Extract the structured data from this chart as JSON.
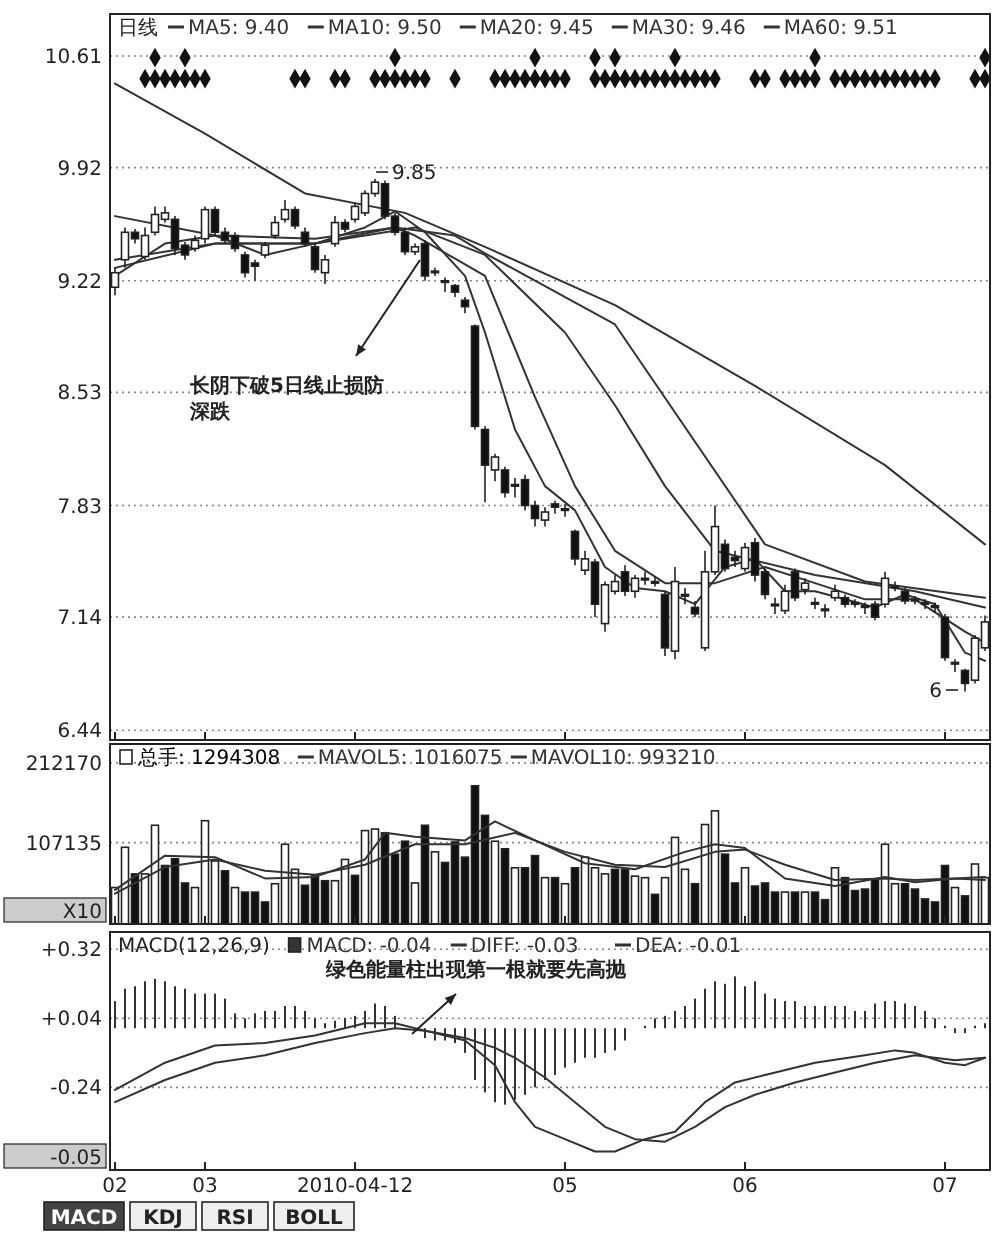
{
  "chart_data": [
    {
      "type": "candlestick",
      "legend_title": "日线",
      "legend": "top left",
      "grid": "y",
      "tick_labels": "y",
      "ylim": [
        6.38,
        10.87
      ],
      "yticks": [
        6.44,
        7.14,
        7.83,
        8.53,
        9.22,
        9.92,
        10.61
      ],
      "categories": [
        "02",
        null,
        null,
        null,
        null,
        null,
        null,
        null,
        null,
        "03",
        null,
        null,
        null,
        null,
        null,
        null,
        null,
        null,
        null,
        null,
        null,
        null,
        null,
        null,
        "2010-04-12",
        null,
        null,
        null,
        null,
        null,
        null,
        null,
        null,
        null,
        null,
        null,
        null,
        null,
        null,
        null,
        null,
        null,
        null,
        null,
        null,
        "05",
        null,
        null,
        null,
        null,
        null,
        null,
        null,
        null,
        null,
        null,
        null,
        null,
        null,
        null,
        null,
        null,
        null,
        "06",
        null,
        null,
        null,
        null,
        null,
        null,
        null,
        null,
        null,
        null,
        null,
        null,
        null,
        null,
        null,
        null,
        null,
        null,
        null,
        "07",
        null,
        null,
        null,
        null
      ],
      "ohlc": [
        [
          9.18,
          9.3,
          9.13,
          9.27
        ],
        [
          9.35,
          9.55,
          9.3,
          9.52
        ],
        [
          9.52,
          9.54,
          9.45,
          9.48
        ],
        [
          9.37,
          9.55,
          9.35,
          9.5
        ],
        [
          9.52,
          9.68,
          9.5,
          9.63
        ],
        [
          9.6,
          9.68,
          9.58,
          9.64
        ],
        [
          9.6,
          9.62,
          9.38,
          9.42
        ],
        [
          9.44,
          9.46,
          9.35,
          9.38
        ],
        [
          9.42,
          9.5,
          9.4,
          9.47
        ],
        [
          9.48,
          9.68,
          9.45,
          9.66
        ],
        [
          9.66,
          9.68,
          9.5,
          9.52
        ],
        [
          9.52,
          9.55,
          9.45,
          9.47
        ],
        [
          9.5,
          9.52,
          9.4,
          9.42
        ],
        [
          9.38,
          9.4,
          9.24,
          9.27
        ],
        [
          9.33,
          9.35,
          9.22,
          9.31
        ],
        [
          9.38,
          9.46,
          9.36,
          9.44
        ],
        [
          9.5,
          9.62,
          9.48,
          9.58
        ],
        [
          9.6,
          9.72,
          9.58,
          9.66
        ],
        [
          9.66,
          9.68,
          9.54,
          9.56
        ],
        [
          9.52,
          9.55,
          9.43,
          9.45
        ],
        [
          9.43,
          9.45,
          9.27,
          9.29
        ],
        [
          9.27,
          9.38,
          9.2,
          9.35
        ],
        [
          9.45,
          9.62,
          9.43,
          9.58
        ],
        [
          9.58,
          9.6,
          9.52,
          9.54
        ],
        [
          9.6,
          9.7,
          9.58,
          9.68
        ],
        [
          9.64,
          9.78,
          9.62,
          9.76
        ],
        [
          9.76,
          9.85,
          9.74,
          9.83
        ],
        [
          9.82,
          9.84,
          9.6,
          9.62
        ],
        [
          9.62,
          9.64,
          9.5,
          9.52
        ],
        [
          9.52,
          9.55,
          9.38,
          9.4
        ],
        [
          9.4,
          9.45,
          9.38,
          9.43
        ],
        [
          9.45,
          9.47,
          9.22,
          9.25
        ],
        [
          9.28,
          9.3,
          9.25,
          9.27
        ],
        [
          9.22,
          9.24,
          9.15,
          9.21
        ],
        [
          9.19,
          9.2,
          9.12,
          9.15
        ],
        [
          9.1,
          9.12,
          9.02,
          9.06
        ],
        [
          8.94,
          8.95,
          8.3,
          8.32
        ],
        [
          8.3,
          8.32,
          7.85,
          8.08
        ],
        [
          8.05,
          8.15,
          7.98,
          8.13
        ],
        [
          8.05,
          8.07,
          7.88,
          7.91
        ],
        [
          7.96,
          8.0,
          7.88,
          7.95
        ],
        [
          7.99,
          8.02,
          7.8,
          7.83
        ],
        [
          7.83,
          7.86,
          7.7,
          7.75
        ],
        [
          7.74,
          7.82,
          7.7,
          7.79
        ],
        [
          7.84,
          7.86,
          7.78,
          7.82
        ],
        [
          7.81,
          7.84,
          7.76,
          7.8
        ],
        [
          7.67,
          7.68,
          7.46,
          7.5
        ],
        [
          7.43,
          7.55,
          7.4,
          7.5
        ],
        [
          7.48,
          7.5,
          7.14,
          7.22
        ],
        [
          7.1,
          7.36,
          7.05,
          7.34
        ],
        [
          7.3,
          7.4,
          7.28,
          7.36
        ],
        [
          7.42,
          7.46,
          7.27,
          7.3
        ],
        [
          7.3,
          7.4,
          7.26,
          7.38
        ],
        [
          7.38,
          7.42,
          7.34,
          7.37
        ],
        [
          7.36,
          7.39,
          7.33,
          7.35
        ],
        [
          7.28,
          7.3,
          6.9,
          6.95
        ],
        [
          6.93,
          7.45,
          6.88,
          7.36
        ],
        [
          7.28,
          7.32,
          7.22,
          7.27
        ],
        [
          7.2,
          7.24,
          7.14,
          7.16
        ],
        [
          6.95,
          7.55,
          6.93,
          7.42
        ],
        [
          7.42,
          7.83,
          7.4,
          7.7
        ],
        [
          7.59,
          7.62,
          7.42,
          7.44
        ],
        [
          7.51,
          7.55,
          7.45,
          7.49
        ],
        [
          7.44,
          7.6,
          7.42,
          7.57
        ],
        [
          7.6,
          7.63,
          7.36,
          7.4
        ],
        [
          7.42,
          7.44,
          7.25,
          7.28
        ],
        [
          7.22,
          7.26,
          7.16,
          7.21
        ],
        [
          7.18,
          7.34,
          7.16,
          7.3
        ],
        [
          7.42,
          7.44,
          7.24,
          7.26
        ],
        [
          7.31,
          7.38,
          7.28,
          7.35
        ],
        [
          7.23,
          7.26,
          7.19,
          7.22
        ],
        [
          7.19,
          7.22,
          7.14,
          7.18
        ],
        [
          7.26,
          7.34,
          7.24,
          7.3
        ],
        [
          7.26,
          7.28,
          7.2,
          7.22
        ],
        [
          7.23,
          7.25,
          7.2,
          7.22
        ],
        [
          7.21,
          7.23,
          7.16,
          7.2
        ],
        [
          7.22,
          7.24,
          7.12,
          7.14
        ],
        [
          7.22,
          7.42,
          7.2,
          7.38
        ],
        [
          7.33,
          7.36,
          7.3,
          7.32
        ],
        [
          7.3,
          7.32,
          7.22,
          7.24
        ],
        [
          7.25,
          7.27,
          7.22,
          7.24
        ],
        [
          7.23,
          7.25,
          7.19,
          7.22
        ],
        [
          7.21,
          7.23,
          7.17,
          7.2
        ],
        [
          7.14,
          7.16,
          6.87,
          6.89
        ],
        [
          6.86,
          6.88,
          6.8,
          6.85
        ],
        [
          6.81,
          6.82,
          6.68,
          6.73
        ],
        [
          6.75,
          7.03,
          6.73,
          7.01
        ],
        [
          6.95,
          7.15,
          6.93,
          7.11
        ]
      ],
      "series": [
        {
          "name": "MA5: 9.40",
          "type": "line",
          "color": "#333333",
          "values": [
            9.25,
            null,
            null,
            null,
            null,
            9.45,
            null,
            null,
            null,
            null,
            9.5,
            null,
            null,
            null,
            null,
            9.38,
            null,
            null,
            null,
            null,
            9.45,
            null,
            null,
            null,
            null,
            9.55,
            null,
            null,
            9.65,
            null,
            null,
            9.52,
            null,
            null,
            null,
            9.25,
            null,
            8.9,
            null,
            null,
            8.3,
            null,
            null,
            7.95,
            null,
            null,
            7.8,
            null,
            null,
            7.45,
            null,
            null,
            7.32,
            null,
            null,
            7.3,
            null,
            null,
            7.22,
            null,
            null,
            7.45,
            null,
            null,
            7.5,
            null,
            null,
            7.3,
            null,
            null,
            7.3,
            null,
            null,
            7.25,
            null,
            null,
            7.2,
            null,
            null,
            7.28,
            null,
            null,
            7.22,
            null,
            null,
            6.92,
            null,
            6.87
          ]
        },
        {
          "name": "MA10: 9.50",
          "type": "line",
          "color": "#333333",
          "values": [
            9.3,
            null,
            null,
            null,
            null,
            null,
            null,
            null,
            null,
            null,
            9.45,
            null,
            null,
            null,
            null,
            null,
            null,
            null,
            null,
            null,
            9.45,
            null,
            null,
            null,
            null,
            null,
            null,
            null,
            9.55,
            null,
            9.5,
            null,
            null,
            null,
            null,
            null,
            null,
            9.25,
            null,
            null,
            null,
            null,
            8.5,
            null,
            null,
            null,
            7.95,
            null,
            null,
            null,
            7.55,
            null,
            null,
            null,
            null,
            7.35,
            null,
            null,
            null,
            null,
            7.35,
            null,
            null,
            null,
            null,
            7.45,
            null,
            null,
            null,
            null,
            7.35,
            null,
            null,
            null,
            null,
            7.25,
            null,
            null,
            null,
            null,
            7.25,
            null,
            null,
            null,
            null,
            7.05,
            null,
            6.98
          ]
        },
        {
          "name": "MA20: 9.45",
          "type": "line",
          "color": "#333333",
          "values": [
            9.35,
            null,
            null,
            null,
            null,
            null,
            null,
            null,
            null,
            null,
            9.45,
            null,
            null,
            null,
            null,
            null,
            null,
            null,
            null,
            null,
            9.45,
            null,
            null,
            null,
            null,
            null,
            null,
            null,
            null,
            null,
            9.55,
            null,
            null,
            null,
            null,
            null,
            null,
            9.38,
            null,
            null,
            null,
            null,
            null,
            null,
            null,
            8.9,
            null,
            null,
            null,
            null,
            8.45,
            null,
            null,
            null,
            null,
            7.95,
            null,
            null,
            null,
            null,
            7.55,
            null,
            null,
            null,
            null,
            null,
            null,
            null,
            null,
            null,
            7.4,
            null,
            null,
            null,
            null,
            null,
            null,
            null,
            null,
            null,
            7.3,
            null,
            null,
            null,
            null,
            null,
            null,
            7.2
          ]
        },
        {
          "name": "MA30: 9.46",
          "type": "line",
          "color": "#333333",
          "values": [
            9.62,
            null,
            null,
            null,
            null,
            null,
            null,
            null,
            null,
            null,
            9.5,
            null,
            null,
            null,
            null,
            null,
            null,
            null,
            null,
            null,
            9.48,
            null,
            null,
            null,
            null,
            null,
            null,
            null,
            9.55,
            null,
            null,
            null,
            null,
            null,
            9.5,
            null,
            null,
            9.39,
            null,
            null,
            null,
            null,
            null,
            null,
            null,
            null,
            null,
            null,
            null,
            null,
            8.95,
            null,
            null,
            null,
            null,
            null,
            null,
            null,
            null,
            null,
            null,
            null,
            null,
            null,
            null,
            7.59,
            null,
            null,
            null,
            null,
            null,
            null,
            null,
            null,
            null,
            7.36,
            null,
            null,
            null,
            null,
            null,
            null,
            null,
            null,
            null,
            null,
            null,
            7.26
          ]
        },
        {
          "name": "MA60: 9.51",
          "type": "line",
          "color": "#333333",
          "values": [
            10.44,
            null,
            null,
            null,
            null,
            null,
            null,
            null,
            null,
            10.13,
            null,
            null,
            null,
            null,
            null,
            null,
            null,
            null,
            null,
            9.76,
            null,
            null,
            null,
            null,
            null,
            null,
            null,
            null,
            null,
            9.64,
            null,
            null,
            null,
            null,
            null,
            null,
            null,
            9.43,
            null,
            null,
            null,
            null,
            null,
            null,
            null,
            null,
            null,
            null,
            null,
            null,
            9.07,
            null,
            null,
            null,
            null,
            null,
            null,
            null,
            null,
            null,
            null,
            null,
            null,
            null,
            8.57,
            null,
            null,
            null,
            null,
            null,
            null,
            null,
            null,
            null,
            null,
            null,
            null,
            8.08,
            null,
            null,
            null,
            null,
            null,
            null,
            null,
            null,
            null,
            7.59
          ]
        },
        {
          "type": "scatter",
          "marker": "diamond",
          "color": "#111111",
          "values": [
            null,
            null,
            null,
            10.47,
            10.47,
            10.47,
            10.47,
            10.47,
            10.47,
            10.47,
            null,
            null,
            null,
            null,
            null,
            null,
            null,
            null,
            10.47,
            10.47,
            null,
            null,
            10.47,
            10.47,
            null,
            null,
            10.47,
            10.47,
            10.47,
            10.47,
            10.47,
            10.47,
            null,
            null,
            10.47,
            null,
            null,
            null,
            10.47,
            10.47,
            10.47,
            10.47,
            10.47,
            10.47,
            10.47,
            10.47,
            null,
            null,
            10.47,
            10.47,
            10.47,
            10.47,
            10.47,
            10.47,
            10.47,
            10.47,
            10.47,
            10.47,
            10.47,
            10.47,
            10.47,
            null,
            null,
            null,
            10.47,
            10.47,
            null,
            10.47,
            10.47,
            10.47,
            10.47,
            null,
            10.47,
            10.47,
            10.47,
            10.47,
            10.47,
            10.47,
            10.47,
            10.47,
            10.47,
            10.47,
            10.47,
            null,
            null,
            null,
            10.47,
            10.47
          ]
        },
        {
          "type": "scatter",
          "marker": "diamond",
          "color": "#111111",
          "values": [
            null,
            null,
            null,
            null,
            10.6,
            null,
            null,
            10.6,
            null,
            null,
            null,
            null,
            null,
            null,
            null,
            null,
            null,
            null,
            null,
            null,
            null,
            null,
            null,
            null,
            null,
            null,
            null,
            null,
            10.6,
            null,
            null,
            null,
            null,
            null,
            null,
            null,
            null,
            null,
            null,
            null,
            null,
            null,
            10.6,
            null,
            null,
            null,
            null,
            null,
            10.6,
            null,
            10.6,
            null,
            null,
            null,
            null,
            null,
            10.6,
            null,
            null,
            null,
            null,
            null,
            null,
            null,
            null,
            null,
            null,
            null,
            null,
            null,
            10.6,
            null,
            null,
            null,
            null,
            null,
            null,
            null,
            null,
            null,
            null,
            null,
            null,
            null,
            null,
            null,
            null,
            10.6
          ]
        }
      ],
      "annotations": [
        "9.85",
        "6",
        "长阴下破5日线止损防深跌"
      ]
    },
    {
      "type": "bar",
      "legend": "top left",
      "grid": "y",
      "tick_labels": "y",
      "ylim": [
        0,
        237000
      ],
      "yticks": [
        107135,
        212170
      ],
      "categories": [
        "02",
        null,
        null,
        null,
        null,
        null,
        null,
        null,
        null,
        "03",
        null,
        null,
        null,
        null,
        null,
        null,
        null,
        null,
        null,
        null,
        null,
        null,
        null,
        null,
        "2010-04-12",
        null,
        null,
        null,
        null,
        null,
        null,
        null,
        null,
        null,
        null,
        null,
        null,
        null,
        null,
        null,
        null,
        null,
        null,
        null,
        null,
        "05",
        null,
        null,
        null,
        null,
        null,
        null,
        null,
        null,
        null,
        null,
        null,
        null,
        null,
        null,
        null,
        null,
        null,
        "06",
        null,
        null,
        null,
        null,
        null,
        null,
        null,
        null,
        null,
        null,
        null,
        null,
        null,
        null,
        null,
        null,
        null,
        null,
        null,
        "07",
        null,
        null,
        null,
        null
      ],
      "series": [
        {
          "name": "总手: 1294308",
          "values": [
            48000,
            101000,
            66000,
            66000,
            130000,
            77000,
            86000,
            54000,
            48000,
            136000,
            83000,
            70000,
            48000,
            42000,
            42000,
            29000,
            53000,
            105000,
            72000,
            51000,
            64000,
            57000,
            57000,
            85000,
            64000,
            123000,
            125000,
            120000,
            92000,
            109000,
            54000,
            130000,
            95000,
            81000,
            108000,
            88000,
            182000,
            143000,
            109000,
            99000,
            74000,
            74000,
            90000,
            61000,
            61000,
            53000,
            74000,
            88000,
            74000,
            66000,
            72000,
            72000,
            63000,
            61000,
            39000,
            61000,
            114000,
            72000,
            53000,
            131000,
            149000,
            92000,
            54000,
            74000,
            50000,
            54000,
            42000,
            42000,
            42000,
            42000,
            42000,
            32000,
            74000,
            61000,
            44000,
            46000,
            59000,
            105000,
            53000,
            53000,
            46000,
            33000,
            29000,
            77000,
            48000,
            37000,
            79000,
            61000
          ],
          "colors": [
            "#ffffff",
            "#ffffff",
            "#111111",
            "#ffffff",
            "#ffffff",
            "#111111",
            "#111111",
            "#111111",
            "#ffffff",
            "#ffffff",
            "#ffffff",
            "#111111",
            "#ffffff",
            "#111111",
            "#111111",
            "#111111",
            "#ffffff",
            "#ffffff",
            "#ffffff",
            "#111111",
            "#111111",
            "#111111",
            "#ffffff",
            "#ffffff",
            "#111111",
            "#ffffff",
            "#ffffff",
            "#111111",
            "#111111",
            "#111111",
            "#ffffff",
            "#111111",
            "#ffffff",
            "#111111",
            "#111111",
            "#111111",
            "#111111",
            "#111111",
            "#ffffff",
            "#111111",
            "#ffffff",
            "#111111",
            "#111111",
            "#ffffff",
            "#111111",
            "#ffffff",
            "#111111",
            "#ffffff",
            "#ffffff",
            "#ffffff",
            "#111111",
            "#111111",
            "#ffffff",
            "#ffffff",
            "#111111",
            "#ffffff",
            "#ffffff",
            "#ffffff",
            "#111111",
            "#ffffff",
            "#ffffff",
            "#111111",
            "#111111",
            "#ffffff",
            "#111111",
            "#111111",
            "#111111",
            "#ffffff",
            "#111111",
            "#ffffff",
            "#111111",
            "#111111",
            "#ffffff",
            "#111111",
            "#111111",
            "#111111",
            "#111111",
            "#ffffff",
            "#ffffff",
            "#111111",
            "#111111",
            "#111111",
            "#111111",
            "#111111",
            "#ffffff",
            "#111111",
            "#ffffff",
            "#ffffff"
          ]
        },
        {
          "name": "MAVOL5: 1016075",
          "type": "line",
          "color": "#333333",
          "values": [
            45000,
            null,
            null,
            null,
            null,
            90000,
            null,
            null,
            null,
            null,
            88000,
            null,
            null,
            null,
            null,
            60000,
            null,
            null,
            null,
            null,
            62000,
            null,
            null,
            null,
            null,
            85000,
            null,
            120000,
            null,
            null,
            115000,
            null,
            null,
            null,
            null,
            110000,
            null,
            null,
            135000,
            null,
            null,
            null,
            110000,
            null,
            null,
            null,
            null,
            80000,
            null,
            null,
            null,
            null,
            72000,
            null,
            null,
            null,
            null,
            95000,
            null,
            null,
            105000,
            null,
            null,
            100000,
            null,
            null,
            null,
            60000,
            null,
            null,
            null,
            null,
            50000,
            null,
            null,
            null,
            null,
            62000,
            null,
            null,
            55000,
            null,
            null,
            null,
            60000,
            null,
            null,
            58000
          ]
        },
        {
          "name": "MAVOL10: 993210",
          "type": "line",
          "color": "#333333",
          "values": [
            40000,
            null,
            null,
            null,
            null,
            75000,
            null,
            null,
            null,
            null,
            85000,
            null,
            null,
            null,
            null,
            70000,
            null,
            null,
            null,
            null,
            65000,
            null,
            null,
            null,
            null,
            78000,
            null,
            null,
            null,
            null,
            105000,
            null,
            null,
            null,
            null,
            105000,
            null,
            null,
            null,
            null,
            120000,
            null,
            null,
            null,
            null,
            95000,
            null,
            null,
            null,
            null,
            78000,
            null,
            null,
            null,
            null,
            75000,
            null,
            null,
            null,
            null,
            95000,
            null,
            null,
            98000,
            null,
            null,
            null,
            78000,
            null,
            null,
            null,
            null,
            58000,
            null,
            null,
            null,
            null,
            60000,
            null,
            null,
            58000,
            null,
            null,
            null,
            60000,
            null,
            null,
            62000
          ]
        }
      ],
      "annotations": [
        "X10"
      ]
    },
    {
      "type": "bar",
      "legend": "top left",
      "legend_title": "MACD(12,26,9)",
      "grid": "y",
      "ylim": [
        -0.575,
        0.39
      ],
      "yticks": [
        {
          "value": 0.32,
          "label": "+0.32"
        },
        {
          "value": 0.04,
          "label": "+0.04"
        },
        -0.24
      ],
      "categories": [
        "02",
        null,
        null,
        null,
        null,
        null,
        null,
        null,
        null,
        "03",
        null,
        null,
        null,
        null,
        null,
        null,
        null,
        null,
        null,
        null,
        null,
        null,
        null,
        null,
        "2010-04-12",
        null,
        null,
        null,
        null,
        null,
        null,
        null,
        null,
        null,
        null,
        null,
        null,
        null,
        null,
        null,
        null,
        null,
        null,
        null,
        null,
        "05",
        null,
        null,
        null,
        null,
        null,
        null,
        null,
        null,
        null,
        null,
        null,
        null,
        null,
        null,
        null,
        null,
        null,
        "06",
        null,
        null,
        null,
        null,
        null,
        null,
        null,
        null,
        null,
        null,
        null,
        null,
        null,
        null,
        null,
        null,
        null,
        null,
        null,
        "07",
        null,
        null,
        null,
        null
      ],
      "series": [
        {
          "name": "MACD: -0.04",
          "color": "#333333",
          "values": [
            0.11,
            0.16,
            0.17,
            0.19,
            0.2,
            0.19,
            0.17,
            0.16,
            0.14,
            0.14,
            0.14,
            0.12,
            0.06,
            0.04,
            0.06,
            0.07,
            0.07,
            0.09,
            0.09,
            0.07,
            0.04,
            0.02,
            0.03,
            0.04,
            0.05,
            0.07,
            0.1,
            0.09,
            0.05,
            null,
            null,
            -0.04,
            -0.05,
            -0.05,
            -0.06,
            -0.1,
            -0.21,
            -0.26,
            -0.3,
            -0.31,
            -0.29,
            -0.27,
            -0.24,
            -0.21,
            -0.19,
            -0.16,
            -0.14,
            -0.12,
            -0.12,
            -0.1,
            -0.09,
            -0.05,
            null,
            0.01,
            0.04,
            0.05,
            0.07,
            0.09,
            0.12,
            0.16,
            0.19,
            0.18,
            0.21,
            0.17,
            0.19,
            0.14,
            0.12,
            0.11,
            0.11,
            0.09,
            0.09,
            0.09,
            0.09,
            0.09,
            0.07,
            0.07,
            0.1,
            0.11,
            0.11,
            0.1,
            0.09,
            0.07,
            0.04,
            0.01,
            -0.02,
            -0.02,
            0.01,
            0.02
          ]
        },
        {
          "name": "DIFF: -0.03",
          "type": "line",
          "color": "#333333",
          "values": [
            -0.25,
            null,
            null,
            null,
            null,
            -0.14,
            null,
            null,
            null,
            null,
            -0.07,
            null,
            null,
            null,
            null,
            -0.06,
            null,
            null,
            null,
            null,
            -0.03,
            null,
            null,
            null,
            null,
            0.02,
            null,
            null,
            0.02,
            null,
            null,
            -0.01,
            null,
            null,
            null,
            -0.05,
            null,
            null,
            -0.15,
            null,
            -0.3,
            null,
            -0.4,
            null,
            null,
            -0.45,
            null,
            null,
            -0.5,
            null,
            -0.5,
            null,
            null,
            -0.45,
            null,
            null,
            -0.42,
            null,
            null,
            -0.3,
            null,
            null,
            -0.22,
            null,
            null,
            -0.19,
            null,
            null,
            null,
            null,
            -0.14,
            null,
            null,
            null,
            null,
            -0.11,
            null,
            null,
            -0.09,
            null,
            -0.1,
            null,
            null,
            -0.14,
            null,
            -0.15,
            null,
            -0.12
          ]
        },
        {
          "name": "DEA: -0.01",
          "type": "line",
          "color": "#333333",
          "values": [
            -0.3,
            null,
            null,
            null,
            null,
            -0.21,
            null,
            null,
            null,
            null,
            -0.14,
            null,
            null,
            null,
            null,
            -0.11,
            null,
            null,
            null,
            null,
            -0.06,
            null,
            null,
            null,
            null,
            -0.02,
            null,
            null,
            0.0,
            null,
            null,
            -0.01,
            null,
            null,
            null,
            -0.04,
            null,
            null,
            -0.08,
            null,
            -0.12,
            null,
            null,
            -0.2,
            null,
            null,
            -0.3,
            null,
            null,
            -0.4,
            null,
            null,
            -0.45,
            null,
            null,
            -0.46,
            null,
            null,
            -0.4,
            null,
            null,
            -0.32,
            null,
            null,
            -0.27,
            null,
            null,
            null,
            -0.22,
            null,
            null,
            null,
            -0.18,
            null,
            null,
            null,
            -0.14,
            null,
            null,
            null,
            -0.11,
            null,
            null,
            null,
            -0.13,
            null,
            null,
            -0.12
          ]
        }
      ],
      "annotations": [
        "-0.05",
        "绿色能量柱出现第一根就要先高抛"
      ]
    },
    {
      "type": "other",
      "annotations": [
        "MACD",
        "KDJ",
        "RSI",
        "BOLL"
      ]
    }
  ]
}
